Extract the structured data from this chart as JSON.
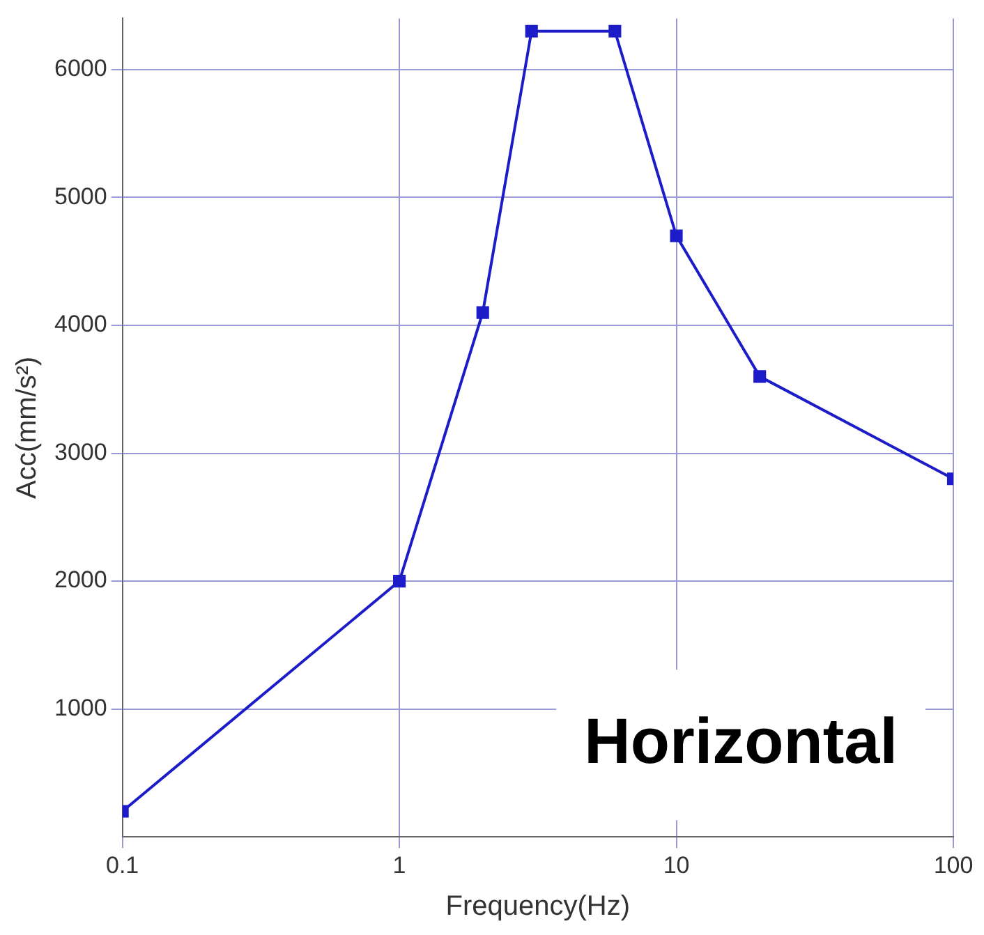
{
  "chart_data": {
    "type": "line",
    "xlabel": "Frequency(Hz)",
    "ylabel": "Acc(mm/s²)",
    "log": "x",
    "x": [
      0.1,
      1,
      2,
      3,
      6,
      10,
      20,
      100
    ],
    "series": [
      {
        "color": "#1c1cc8",
        "values": [
          200,
          2000,
          4100,
          6300,
          6300,
          4700,
          3600,
          2800
        ]
      }
    ],
    "xlim": [
      0.1,
      100
    ],
    "xticks": [
      0.1,
      1,
      10,
      100
    ],
    "ylim": [
      0,
      6400
    ],
    "yticks": [
      1000,
      2000,
      3000,
      4000,
      5000,
      6000
    ],
    "grid": true,
    "legend": false,
    "marker": "square",
    "line_style": "solid",
    "annotations": [
      "Horizontal"
    ]
  }
}
